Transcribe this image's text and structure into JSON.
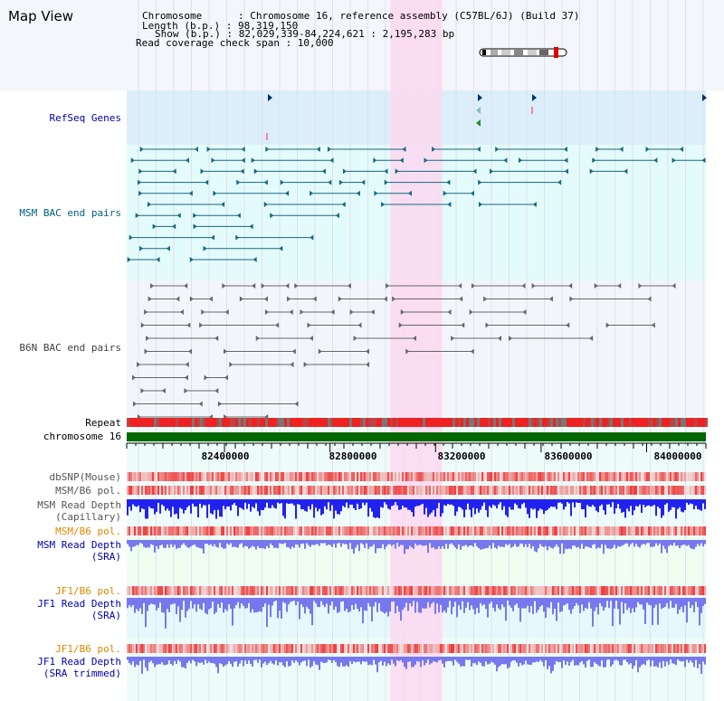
{
  "title": "Map View",
  "info": {
    "lines": [
      "Chromosome      : Chromosome 16, reference assembly (C57BL/6J) (Build 37)",
      "Length (b.p.) : 98,319,150",
      "Show (b.p.) : 82,029,339-84,224,621 : 2,195,283 bp",
      "Read coverage check span : 10,000"
    ]
  },
  "labels": {
    "refseq": "RefSeq Genes",
    "msm_bac": "MSM BAC end pairs",
    "b6n_bac": "B6N BAC end pairs",
    "repeat": "Repeat",
    "chromosome": "chromosome 16",
    "dbsnp": "dbSNP(Mouse)",
    "msm_b6_pol_1": "MSM/B6 pol.",
    "msm_read_depth_cap": "MSM Read Depth",
    "capillary": "(Capillary)",
    "msm_b6_pol_2": "MSM/B6 pol.",
    "msm_read_depth_sra": "MSM Read Depth",
    "sra_1": "(SRA)",
    "jf1_b6_pol_1": "JF1/B6 pol.",
    "jf1_read_depth": "JF1 Read Depth",
    "sra_2": "(SRA)",
    "jf1_b6_pol_2": "JF1/B6 pol.",
    "jf1_read_depth_trim": "JF1 Read Depth",
    "sra_trimmed": "(SRA trimmed)"
  },
  "axis": {
    "ticks": [
      "82400000",
      "82800000",
      "83200000",
      "83600000",
      "84000000"
    ],
    "tick_values": [
      82400000,
      82800000,
      83200000,
      83600000,
      84000000
    ],
    "range": [
      82029339,
      84224621
    ]
  },
  "highlight_range": [
    83029000,
    83225000
  ],
  "colors": {
    "refseq_label": "#0000aa",
    "msm_bac_label": "#006080",
    "b6n_bac_label": "#404040",
    "pol_label_orange": "#dd8800",
    "depth_label": "#0000aa",
    "chromosome_bar": "#006600",
    "refseq_bg": "#dbeefa",
    "highlight": "#fcd8f0",
    "msm_depth": "#2222ee",
    "sra_depth": "#7777ee"
  }
}
